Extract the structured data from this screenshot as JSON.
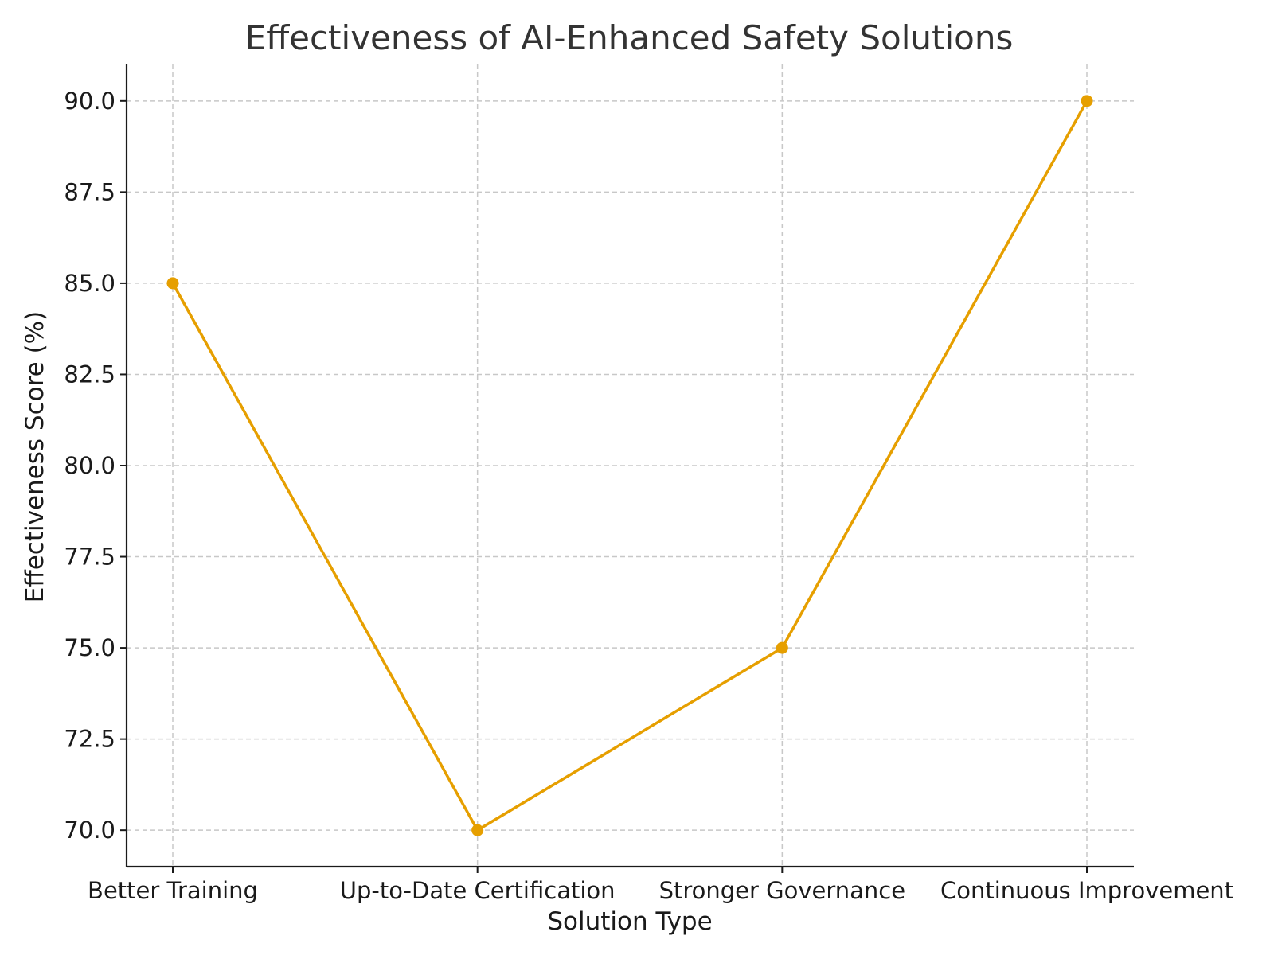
{
  "chart_data": {
    "type": "line",
    "title": "Effectiveness of AI-Enhanced Safety Solutions",
    "xlabel": "Solution Type",
    "ylabel": "Effectiveness Score (%)",
    "categories": [
      "Better Training",
      "Up-to-Date Certification",
      "Stronger Governance",
      "Continuous Improvement"
    ],
    "values": [
      85,
      70,
      75,
      90
    ],
    "ylim": [
      69.0,
      91.0
    ],
    "yticks": [
      70.0,
      72.5,
      75.0,
      77.5,
      80.0,
      82.5,
      85.0,
      87.5,
      90.0
    ],
    "ytick_labels": [
      "70.0",
      "72.5",
      "75.0",
      "77.5",
      "80.0",
      "82.5",
      "85.0",
      "87.5",
      "90.0"
    ],
    "grid": true,
    "line_color": "#E69F00",
    "marker": "circle"
  }
}
